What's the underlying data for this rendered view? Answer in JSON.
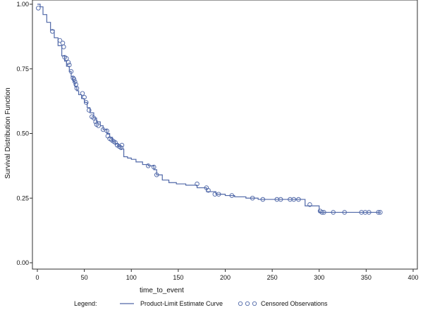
{
  "chart_data": {
    "type": "line",
    "xlabel": "time_to_event",
    "ylabel": "Survival Distribution Function",
    "xlim": [
      0,
      400
    ],
    "ylim": [
      0,
      1
    ],
    "x_ticks": [
      0,
      50,
      100,
      150,
      200,
      250,
      300,
      350,
      400
    ],
    "y_ticks": [
      0.0,
      0.25,
      0.5,
      0.75,
      1.0
    ],
    "x_tick_labels": [
      "0",
      "50",
      "100",
      "150",
      "200",
      "250",
      "300",
      "350",
      "400"
    ],
    "y_tick_labels": [
      "0.00",
      "0.25",
      "0.50",
      "0.75",
      "1.00"
    ],
    "grid": false,
    "legend_position": "bottom",
    "series": [
      {
        "name": "Product-Limit Estimate Curve",
        "kind": "step",
        "color": "#5068a8",
        "x": [
          0,
          3,
          6,
          10,
          14,
          18,
          22,
          26,
          29,
          31,
          34,
          36,
          38,
          40,
          42,
          44,
          47,
          50,
          53,
          56,
          60,
          63,
          67,
          70,
          74,
          77,
          80,
          83,
          86,
          89,
          92,
          96,
          100,
          105,
          112,
          118,
          124,
          127,
          133,
          140,
          148,
          158,
          170,
          180,
          190,
          200,
          210,
          222,
          235,
          255,
          270,
          285,
          300,
          365
        ],
        "y": [
          1.0,
          0.99,
          0.96,
          0.93,
          0.9,
          0.87,
          0.84,
          0.8,
          0.78,
          0.76,
          0.74,
          0.72,
          0.7,
          0.68,
          0.665,
          0.65,
          0.635,
          0.62,
          0.6,
          0.58,
          0.56,
          0.545,
          0.53,
          0.515,
          0.5,
          0.485,
          0.47,
          0.46,
          0.45,
          0.44,
          0.41,
          0.405,
          0.4,
          0.39,
          0.38,
          0.375,
          0.36,
          0.34,
          0.32,
          0.31,
          0.305,
          0.3,
          0.29,
          0.275,
          0.265,
          0.26,
          0.255,
          0.25,
          0.245,
          0.245,
          0.245,
          0.22,
          0.195,
          0.195
        ]
      },
      {
        "name": "Censored Observations",
        "kind": "scatter",
        "color": "#5068a8",
        "points": [
          [
            1,
            0.985
          ],
          [
            16,
            0.895
          ],
          [
            24,
            0.86
          ],
          [
            27,
            0.85
          ],
          [
            28,
            0.835
          ],
          [
            29,
            0.795
          ],
          [
            31,
            0.79
          ],
          [
            33,
            0.775
          ],
          [
            34,
            0.765
          ],
          [
            36,
            0.74
          ],
          [
            38,
            0.715
          ],
          [
            39,
            0.71
          ],
          [
            40,
            0.7
          ],
          [
            41,
            0.69
          ],
          [
            42,
            0.675
          ],
          [
            48,
            0.655
          ],
          [
            50,
            0.64
          ],
          [
            52,
            0.62
          ],
          [
            55,
            0.59
          ],
          [
            58,
            0.565
          ],
          [
            60,
            0.56
          ],
          [
            62,
            0.545
          ],
          [
            63,
            0.535
          ],
          [
            65,
            0.53
          ],
          [
            70,
            0.515
          ],
          [
            74,
            0.51
          ],
          [
            75,
            0.49
          ],
          [
            77,
            0.48
          ],
          [
            79,
            0.475
          ],
          [
            81,
            0.47
          ],
          [
            83,
            0.465
          ],
          [
            85,
            0.455
          ],
          [
            87,
            0.45
          ],
          [
            89,
            0.445
          ],
          [
            90,
            0.455
          ],
          [
            118,
            0.375
          ],
          [
            124,
            0.37
          ],
          [
            127,
            0.34
          ],
          [
            170,
            0.305
          ],
          [
            180,
            0.29
          ],
          [
            182,
            0.28
          ],
          [
            189,
            0.265
          ],
          [
            193,
            0.265
          ],
          [
            207,
            0.26
          ],
          [
            229,
            0.25
          ],
          [
            240,
            0.245
          ],
          [
            255,
            0.245
          ],
          [
            259,
            0.245
          ],
          [
            269,
            0.245
          ],
          [
            273,
            0.245
          ],
          [
            278,
            0.245
          ],
          [
            290,
            0.225
          ],
          [
            301,
            0.2
          ],
          [
            303,
            0.195
          ],
          [
            305,
            0.195
          ],
          [
            315,
            0.195
          ],
          [
            327,
            0.195
          ],
          [
            345,
            0.195
          ],
          [
            349,
            0.195
          ],
          [
            353,
            0.195
          ],
          [
            363,
            0.195
          ],
          [
            365,
            0.195
          ]
        ]
      }
    ]
  },
  "legend": {
    "label": "Legend:",
    "curve_label": "Product-Limit Estimate Curve",
    "censored_label": "Censored Observations"
  }
}
